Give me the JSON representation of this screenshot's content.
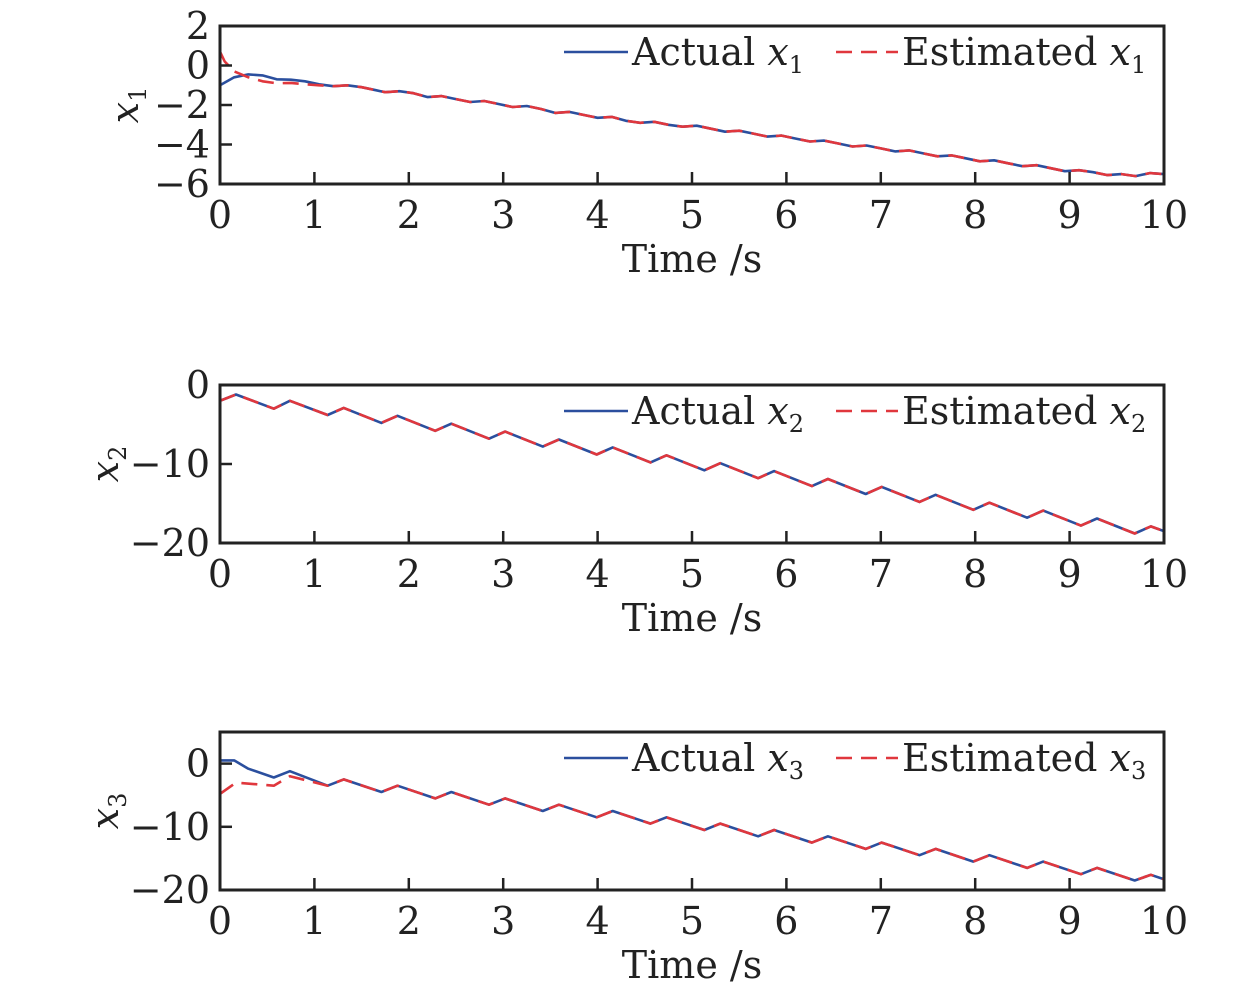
{
  "colors": {
    "actual": "#2b4f9e",
    "estimated": "#e0373d",
    "axis": "#222222"
  },
  "chart_data": [
    {
      "type": "line",
      "xlabel": "Time /s",
      "ylabel": {
        "var": "x",
        "sub": "1"
      },
      "xlim": [
        0,
        10
      ],
      "ylim": [
        -6,
        2
      ],
      "xticks": [
        0,
        1,
        2,
        3,
        4,
        5,
        6,
        7,
        8,
        9,
        10
      ],
      "yticks": [
        2,
        0,
        -2,
        -4,
        -6
      ],
      "ytick_labels": [
        "2",
        "0",
        "−2",
        "−4",
        "−6"
      ],
      "legend_position": "top-right",
      "series": [
        {
          "name": "Actual x1",
          "label_text": "Actual",
          "label_var": "x",
          "label_sub": "1",
          "style": "solid",
          "x": [
            0,
            0.15,
            0.3,
            0.45,
            0.6,
            0.75,
            0.9,
            1.05,
            1.2,
            1.35,
            1.5,
            1.65,
            1.75,
            1.9,
            2.05,
            2.2,
            2.35,
            2.5,
            2.65,
            2.8,
            2.95,
            3.1,
            3.25,
            3.4,
            3.55,
            3.7,
            3.85,
            4.0,
            4.15,
            4.3,
            4.45,
            4.6,
            4.75,
            4.9,
            5.05,
            5.2,
            5.35,
            5.5,
            5.65,
            5.8,
            5.95,
            6.1,
            6.25,
            6.4,
            6.55,
            6.7,
            6.85,
            7.0,
            7.15,
            7.3,
            7.45,
            7.6,
            7.75,
            7.9,
            8.05,
            8.2,
            8.35,
            8.5,
            8.65,
            8.8,
            8.95,
            9.1,
            9.25,
            9.4,
            9.55,
            9.7,
            9.85,
            10.0
          ],
          "y": [
            -1.0,
            -0.6,
            -0.45,
            -0.5,
            -0.7,
            -0.72,
            -0.8,
            -0.95,
            -1.05,
            -1.0,
            -1.1,
            -1.25,
            -1.35,
            -1.3,
            -1.4,
            -1.6,
            -1.55,
            -1.7,
            -1.85,
            -1.8,
            -1.95,
            -2.1,
            -2.05,
            -2.2,
            -2.4,
            -2.35,
            -2.5,
            -2.65,
            -2.6,
            -2.8,
            -2.9,
            -2.85,
            -3.0,
            -3.1,
            -3.05,
            -3.2,
            -3.35,
            -3.3,
            -3.45,
            -3.6,
            -3.55,
            -3.7,
            -3.85,
            -3.8,
            -3.95,
            -4.1,
            -4.05,
            -4.2,
            -4.35,
            -4.3,
            -4.45,
            -4.6,
            -4.55,
            -4.7,
            -4.85,
            -4.8,
            -4.95,
            -5.1,
            -5.05,
            -5.2,
            -5.35,
            -5.3,
            -5.4,
            -5.55,
            -5.5,
            -5.6,
            -5.45,
            -5.5
          ]
        },
        {
          "name": "Estimated x1",
          "label_text": "Estimated",
          "label_var": "x",
          "label_sub": "1",
          "style": "dashed",
          "x": [
            0,
            0.05,
            0.15,
            0.3,
            0.45,
            0.6,
            0.75,
            0.9,
            1.05,
            1.2,
            1.35,
            1.5,
            1.65,
            1.75,
            1.9,
            2.05,
            2.2,
            2.35,
            2.5,
            2.65,
            2.8,
            2.95,
            3.1,
            3.25,
            3.4,
            3.55,
            3.7,
            3.85,
            4.0,
            4.15,
            4.3,
            4.45,
            4.6,
            4.75,
            4.9,
            5.05,
            5.2,
            5.35,
            5.5,
            5.65,
            5.8,
            5.95,
            6.1,
            6.25,
            6.4,
            6.55,
            6.7,
            6.85,
            7.0,
            7.15,
            7.3,
            7.45,
            7.6,
            7.75,
            7.9,
            8.05,
            8.2,
            8.35,
            8.5,
            8.65,
            8.8,
            8.95,
            9.1,
            9.25,
            9.4,
            9.55,
            9.7,
            9.85,
            10.0
          ],
          "y": [
            0.7,
            0.2,
            -0.3,
            -0.6,
            -0.8,
            -0.9,
            -0.88,
            -0.95,
            -1.0,
            -1.05,
            -1.0,
            -1.1,
            -1.25,
            -1.35,
            -1.3,
            -1.4,
            -1.6,
            -1.55,
            -1.7,
            -1.85,
            -1.8,
            -1.95,
            -2.1,
            -2.05,
            -2.2,
            -2.4,
            -2.35,
            -2.5,
            -2.65,
            -2.6,
            -2.8,
            -2.9,
            -2.85,
            -3.0,
            -3.1,
            -3.05,
            -3.2,
            -3.35,
            -3.3,
            -3.45,
            -3.6,
            -3.55,
            -3.7,
            -3.85,
            -3.8,
            -3.95,
            -4.1,
            -4.05,
            -4.2,
            -4.35,
            -4.3,
            -4.45,
            -4.6,
            -4.55,
            -4.7,
            -4.85,
            -4.8,
            -4.95,
            -5.1,
            -5.05,
            -5.2,
            -5.35,
            -5.3,
            -5.4,
            -5.55,
            -5.5,
            -5.6,
            -5.45,
            -5.5
          ]
        }
      ]
    },
    {
      "type": "line",
      "xlabel": "Time /s",
      "ylabel": {
        "var": "x",
        "sub": "2"
      },
      "xlim": [
        0,
        10
      ],
      "ylim": [
        -20,
        0
      ],
      "xticks": [
        0,
        1,
        2,
        3,
        4,
        5,
        6,
        7,
        8,
        9,
        10
      ],
      "yticks": [
        0,
        -10,
        -20
      ],
      "ytick_labels": [
        "0",
        "−10",
        "−20"
      ],
      "legend_position": "top-right",
      "series": [
        {
          "name": "Actual x2",
          "label_text": "Actual",
          "label_var": "x",
          "label_sub": "2",
          "style": "solid",
          "x": [
            0,
            0.17,
            0.57,
            0.74,
            1.14,
            1.31,
            1.71,
            1.88,
            2.28,
            2.45,
            2.85,
            3.02,
            3.42,
            3.59,
            3.99,
            4.16,
            4.56,
            4.73,
            5.13,
            5.3,
            5.7,
            5.87,
            6.27,
            6.44,
            6.84,
            7.01,
            7.41,
            7.58,
            7.98,
            8.15,
            8.55,
            8.72,
            9.12,
            9.29,
            9.69,
            9.86,
            10.0
          ],
          "y": [
            -2.0,
            -1.2,
            -3.0,
            -2.0,
            -3.8,
            -2.9,
            -4.8,
            -3.9,
            -5.8,
            -4.9,
            -6.8,
            -5.9,
            -7.8,
            -6.9,
            -8.8,
            -7.9,
            -9.8,
            -8.9,
            -10.8,
            -9.9,
            -11.8,
            -10.9,
            -12.8,
            -11.9,
            -13.8,
            -12.9,
            -14.8,
            -13.9,
            -15.8,
            -14.9,
            -16.8,
            -15.9,
            -17.8,
            -16.9,
            -18.8,
            -17.9,
            -18.5
          ]
        },
        {
          "name": "Estimated x2",
          "label_text": "Estimated",
          "label_var": "x",
          "label_sub": "2",
          "style": "dashed",
          "x": [
            0,
            0.17,
            0.57,
            0.74,
            1.14,
            1.31,
            1.71,
            1.88,
            2.28,
            2.45,
            2.85,
            3.02,
            3.42,
            3.59,
            3.99,
            4.16,
            4.56,
            4.73,
            5.13,
            5.3,
            5.7,
            5.87,
            6.27,
            6.44,
            6.84,
            7.01,
            7.41,
            7.58,
            7.98,
            8.15,
            8.55,
            8.72,
            9.12,
            9.29,
            9.69,
            9.86,
            10.0
          ],
          "y": [
            -2.0,
            -1.2,
            -3.0,
            -2.0,
            -3.8,
            -2.9,
            -4.8,
            -3.9,
            -5.8,
            -4.9,
            -6.8,
            -5.9,
            -7.8,
            -6.9,
            -8.8,
            -7.9,
            -9.8,
            -8.9,
            -10.8,
            -9.9,
            -11.8,
            -10.9,
            -12.8,
            -11.9,
            -13.8,
            -12.9,
            -14.8,
            -13.9,
            -15.8,
            -14.9,
            -16.8,
            -15.9,
            -17.8,
            -16.9,
            -18.8,
            -17.9,
            -18.5
          ]
        }
      ]
    },
    {
      "type": "line",
      "xlabel": "Time /s",
      "ylabel": {
        "var": "x",
        "sub": "3"
      },
      "xlim": [
        0,
        10
      ],
      "ylim": [
        -20,
        5
      ],
      "xticks": [
        0,
        1,
        2,
        3,
        4,
        5,
        6,
        7,
        8,
        9,
        10
      ],
      "yticks": [
        0,
        -10,
        -20
      ],
      "ytick_labels": [
        "0",
        "−10",
        "−20"
      ],
      "legend_position": "top-right",
      "series": [
        {
          "name": "Actual x3",
          "label_text": "Actual",
          "label_var": "x",
          "label_sub": "3",
          "style": "solid",
          "x": [
            0,
            0.15,
            0.3,
            0.57,
            0.74,
            1.14,
            1.31,
            1.71,
            1.88,
            2.28,
            2.45,
            2.85,
            3.02,
            3.42,
            3.59,
            3.99,
            4.16,
            4.56,
            4.73,
            5.13,
            5.3,
            5.7,
            5.87,
            6.27,
            6.44,
            6.84,
            7.01,
            7.41,
            7.58,
            7.98,
            8.15,
            8.55,
            8.72,
            9.12,
            9.29,
            9.69,
            9.86,
            10.0
          ],
          "y": [
            0.5,
            0.5,
            -0.8,
            -2.2,
            -1.2,
            -3.5,
            -2.5,
            -4.5,
            -3.5,
            -5.5,
            -4.5,
            -6.5,
            -5.5,
            -7.5,
            -6.5,
            -8.5,
            -7.5,
            -9.5,
            -8.5,
            -10.5,
            -9.5,
            -11.5,
            -10.5,
            -12.5,
            -11.5,
            -13.5,
            -12.5,
            -14.5,
            -13.5,
            -15.5,
            -14.5,
            -16.5,
            -15.5,
            -17.5,
            -16.5,
            -18.5,
            -17.6,
            -18.3
          ]
        },
        {
          "name": "Estimated x3",
          "label_text": "Estimated",
          "label_var": "x",
          "label_sub": "3",
          "style": "dashed",
          "x": [
            0,
            0.17,
            0.57,
            0.74,
            1.14,
            1.31,
            1.71,
            1.88,
            2.28,
            2.45,
            2.85,
            3.02,
            3.42,
            3.59,
            3.99,
            4.16,
            4.56,
            4.73,
            5.13,
            5.3,
            5.7,
            5.87,
            6.27,
            6.44,
            6.84,
            7.01,
            7.41,
            7.58,
            7.98,
            8.15,
            8.55,
            8.72,
            9.12,
            9.29,
            9.69,
            9.86,
            10.0
          ],
          "y": [
            -4.8,
            -3.0,
            -3.5,
            -2.0,
            -3.5,
            -2.5,
            -4.5,
            -3.5,
            -5.5,
            -4.5,
            -6.5,
            -5.5,
            -7.5,
            -6.5,
            -8.5,
            -7.5,
            -9.5,
            -8.5,
            -10.5,
            -9.5,
            -11.5,
            -10.5,
            -12.5,
            -11.5,
            -13.5,
            -12.5,
            -14.5,
            -13.5,
            -15.5,
            -14.5,
            -16.5,
            -15.5,
            -17.5,
            -16.5,
            -18.5,
            -17.6,
            -18.3
          ]
        }
      ]
    }
  ]
}
